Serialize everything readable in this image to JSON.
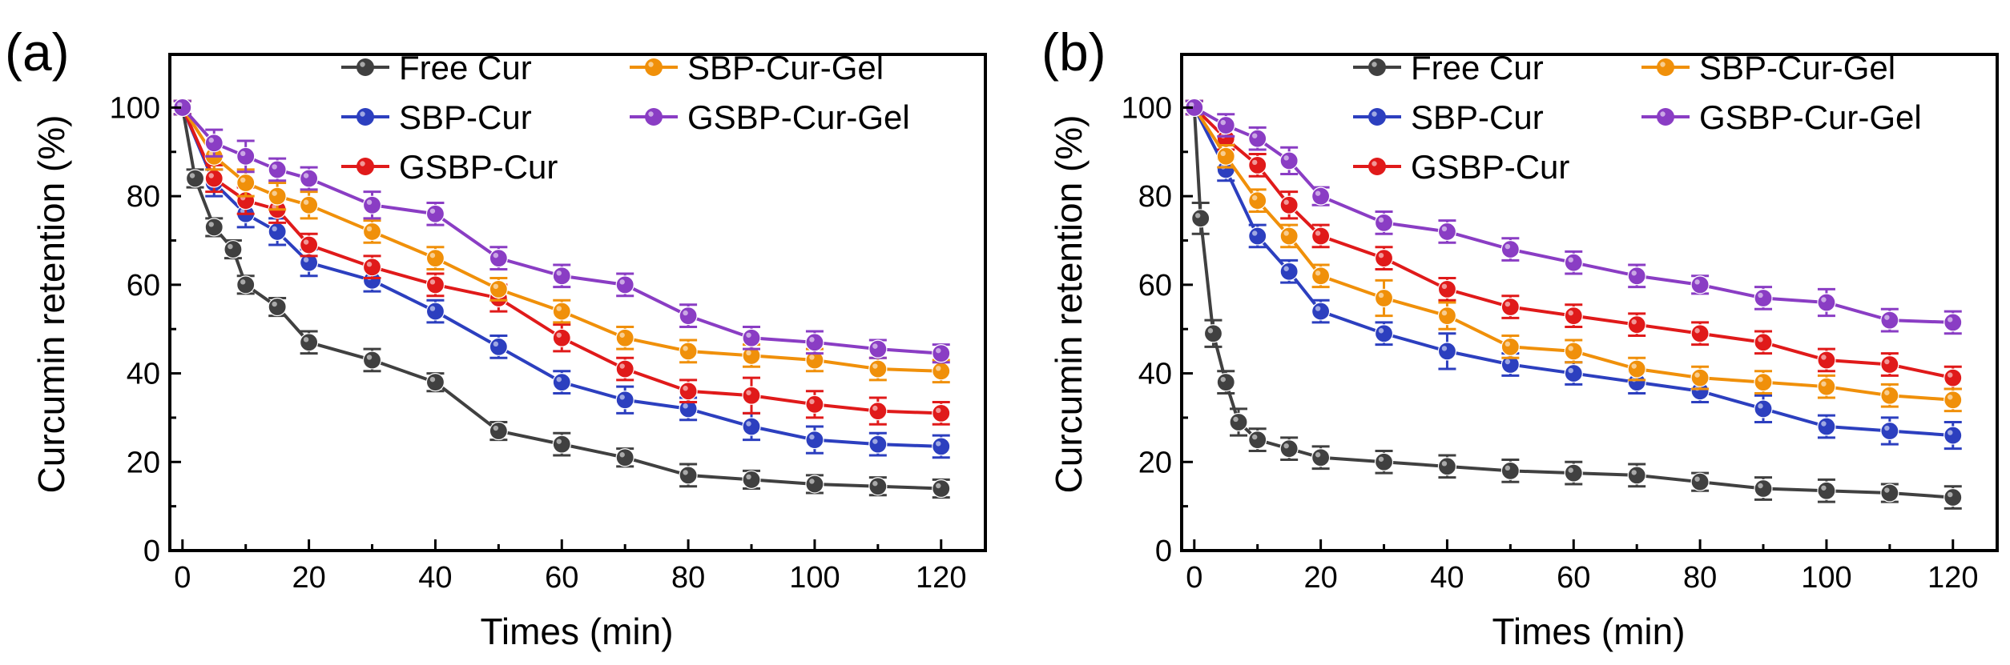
{
  "chart_data": [
    {
      "type": "line",
      "panel_label": "(a)",
      "xlabel": "Times (min)",
      "ylabel": "Curcumin retention (%)",
      "xlim": [
        -2,
        127
      ],
      "ylim": [
        0,
        112
      ],
      "xticks": [
        0,
        20,
        40,
        60,
        80,
        100,
        120
      ],
      "yticks": [
        0,
        20,
        40,
        60,
        80,
        100
      ],
      "legend": "top-right",
      "series": [
        {
          "name": "Free Cur",
          "color": "#404040",
          "x": [
            0,
            2,
            5,
            8,
            10,
            15,
            20,
            30,
            40,
            50,
            60,
            70,
            80,
            90,
            100,
            110,
            120
          ],
          "values": [
            100,
            84,
            73,
            68,
            60,
            55,
            47,
            43,
            38,
            27,
            24,
            21,
            17,
            16,
            15,
            14.5,
            14
          ],
          "errors": [
            1.5,
            2,
            2,
            2,
            2,
            2,
            2.5,
            2.5,
            2,
            2,
            2.5,
            2,
            2.5,
            2,
            2,
            2,
            2
          ]
        },
        {
          "name": "SBP-Cur",
          "color": "#2c3fbf",
          "x": [
            0,
            5,
            10,
            15,
            20,
            30,
            40,
            50,
            60,
            70,
            80,
            90,
            100,
            110,
            120
          ],
          "values": [
            100,
            83,
            76,
            72,
            65,
            61,
            54,
            46,
            38,
            34,
            32,
            28,
            25,
            24,
            23.5
          ],
          "errors": [
            1.5,
            3,
            3,
            3,
            3,
            2.5,
            2.5,
            2.5,
            2.5,
            3,
            2.5,
            3,
            3,
            2.5,
            2.5
          ]
        },
        {
          "name": "GSBP-Cur",
          "color": "#e01a1a",
          "x": [
            0,
            5,
            10,
            15,
            20,
            30,
            40,
            50,
            60,
            70,
            80,
            90,
            100,
            110,
            120
          ],
          "values": [
            100,
            84,
            79,
            77,
            69,
            64,
            60,
            57,
            48,
            41,
            36,
            35,
            33,
            31.5,
            31
          ],
          "errors": [
            1.5,
            3,
            3,
            3,
            2.5,
            2.5,
            2.5,
            3,
            3,
            2.5,
            2.5,
            4,
            3,
            3,
            2.5
          ]
        },
        {
          "name": "SBP-Cur-Gel",
          "color": "#f0900a",
          "x": [
            0,
            5,
            10,
            15,
            20,
            30,
            40,
            50,
            60,
            70,
            80,
            90,
            100,
            110,
            120
          ],
          "values": [
            100,
            89,
            83,
            80,
            78,
            72,
            66,
            59,
            54,
            48,
            45,
            44,
            43,
            41,
            40.5
          ],
          "errors": [
            1.5,
            3,
            3,
            3,
            3,
            2.5,
            2.5,
            2.5,
            2.5,
            2.5,
            2.5,
            2.5,
            2.5,
            2.5,
            2.5
          ]
        },
        {
          "name": "GSBP-Cur-Gel",
          "color": "#8a3dc4",
          "x": [
            0,
            5,
            10,
            15,
            20,
            30,
            40,
            50,
            60,
            70,
            80,
            90,
            100,
            110,
            120
          ],
          "values": [
            100,
            92,
            89,
            86,
            84,
            78,
            76,
            66,
            62,
            60,
            53,
            48,
            47,
            45.5,
            44.5
          ],
          "errors": [
            1.5,
            3,
            3.5,
            2.5,
            2.5,
            3,
            2.5,
            2.5,
            2.5,
            2.5,
            2.5,
            2.5,
            2.5,
            2,
            2
          ]
        }
      ]
    },
    {
      "type": "line",
      "panel_label": "(b)",
      "xlabel": "Times (min)",
      "ylabel": "Curcumin retention (%)",
      "xlim": [
        -2,
        127
      ],
      "ylim": [
        0,
        112
      ],
      "xticks": [
        0,
        20,
        40,
        60,
        80,
        100,
        120
      ],
      "yticks": [
        0,
        20,
        40,
        60,
        80,
        100
      ],
      "legend": "top-right",
      "series": [
        {
          "name": "Free Cur",
          "color": "#404040",
          "x": [
            0,
            1,
            3,
            5,
            7,
            10,
            15,
            20,
            30,
            40,
            50,
            60,
            70,
            80,
            90,
            100,
            110,
            120
          ],
          "values": [
            100,
            75,
            49,
            38,
            29,
            25,
            23,
            21,
            20,
            19,
            18,
            17.5,
            17,
            15.5,
            14,
            13.5,
            13,
            12
          ],
          "errors": [
            1.5,
            3.5,
            3,
            2.5,
            3,
            2.5,
            2.5,
            2.5,
            2.5,
            2.5,
            2.5,
            2.5,
            2.5,
            2,
            2.5,
            2.5,
            2,
            2.5
          ]
        },
        {
          "name": "SBP-Cur",
          "color": "#2c3fbf",
          "x": [
            0,
            5,
            10,
            15,
            20,
            30,
            40,
            50,
            60,
            70,
            80,
            90,
            100,
            110,
            120
          ],
          "values": [
            100,
            86,
            71,
            63,
            54,
            49,
            45,
            42,
            40,
            38,
            36,
            32,
            28,
            27,
            26
          ],
          "errors": [
            1.5,
            2.5,
            2.5,
            2.5,
            2.5,
            2.5,
            4,
            2.5,
            2.5,
            2.5,
            2.5,
            3,
            2.5,
            3,
            3
          ]
        },
        {
          "name": "GSBP-Cur",
          "color": "#e01a1a",
          "x": [
            0,
            5,
            10,
            15,
            20,
            30,
            40,
            50,
            60,
            70,
            80,
            90,
            100,
            110,
            120
          ],
          "values": [
            100,
            93,
            87,
            78,
            71,
            66,
            59,
            55,
            53,
            51,
            49,
            47,
            43,
            42,
            39
          ],
          "errors": [
            1.5,
            2.5,
            2.5,
            3,
            2.5,
            2.5,
            2.5,
            2.5,
            2.5,
            2.5,
            2.5,
            2.5,
            2.5,
            2.5,
            2.5
          ]
        },
        {
          "name": "SBP-Cur-Gel",
          "color": "#f0900a",
          "x": [
            0,
            5,
            10,
            15,
            20,
            30,
            40,
            50,
            60,
            70,
            80,
            90,
            100,
            110,
            120
          ],
          "values": [
            100,
            89,
            79,
            71,
            62,
            57,
            53,
            46,
            45,
            41,
            39,
            38,
            37,
            35,
            34
          ],
          "errors": [
            1.5,
            2.5,
            2.5,
            2.5,
            2.5,
            4,
            3,
            2.5,
            2.5,
            2.5,
            2.5,
            2.5,
            2.5,
            2.5,
            2.5
          ]
        },
        {
          "name": "GSBP-Cur-Gel",
          "color": "#8a3dc4",
          "x": [
            0,
            5,
            10,
            15,
            20,
            30,
            40,
            50,
            60,
            70,
            80,
            90,
            100,
            110,
            120
          ],
          "values": [
            100,
            96,
            93,
            88,
            80,
            74,
            72,
            68,
            65,
            62,
            60,
            57,
            56,
            52,
            51.5
          ],
          "errors": [
            1.5,
            2.5,
            2.5,
            3,
            2,
            2.5,
            2.5,
            2.5,
            2.5,
            2.5,
            2,
            2.5,
            3,
            2.5,
            2.5
          ]
        }
      ]
    }
  ]
}
